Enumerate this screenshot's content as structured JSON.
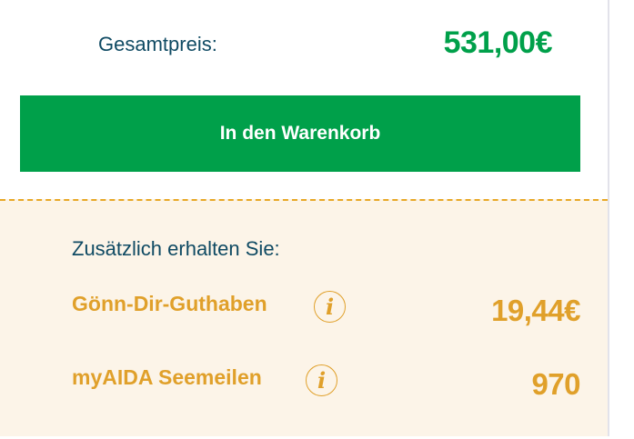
{
  "total": {
    "label": "Gesamtpreis:",
    "price": "531,00€"
  },
  "cart_button": {
    "label": "In den Warenkorb"
  },
  "extras": {
    "title": "Zusätzlich erhalten Sie:",
    "items": [
      {
        "label": "Gönn-Dir-Guthaben",
        "icon": "info-icon",
        "icon_glyph": "i",
        "value": "19,44€"
      },
      {
        "label": "myAIDA Seemeilen",
        "icon": "info-icon",
        "icon_glyph": "i",
        "value": "970"
      }
    ]
  },
  "colors": {
    "green": "#00a04a",
    "gold": "#e0a02a",
    "navy": "#0f4a63",
    "beige": "#fcf4e8"
  }
}
